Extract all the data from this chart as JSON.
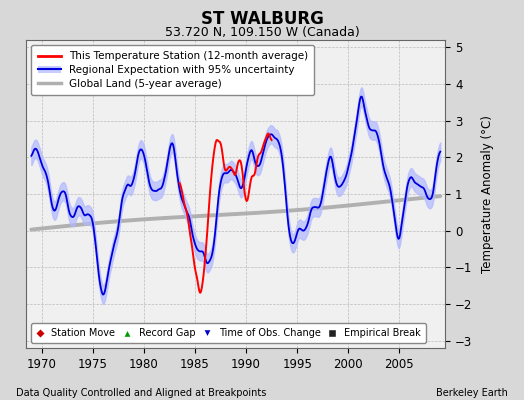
{
  "title": "ST WALBURG",
  "subtitle": "53.720 N, 109.150 W (Canada)",
  "xlabel_bottom": "Data Quality Controlled and Aligned at Breakpoints",
  "xlabel_right": "Berkeley Earth",
  "ylabel": "Temperature Anomaly (°C)",
  "xlim": [
    1968.5,
    2009.5
  ],
  "ylim": [
    -3.2,
    5.2
  ],
  "yticks": [
    -3,
    -2,
    -1,
    0,
    1,
    2,
    3,
    4,
    5
  ],
  "xticks": [
    1970,
    1975,
    1980,
    1985,
    1990,
    1995,
    2000,
    2005
  ],
  "background_color": "#d8d8d8",
  "plot_bg_color": "#f0f0f0",
  "temp_line_color": "#ff0000",
  "regional_line_color": "#0000dd",
  "regional_fill_color": "#b0b8ff",
  "global_line_color": "#b0b0b0",
  "marker_station_move_color": "#cc0000",
  "marker_record_gap_color": "#009900",
  "marker_obs_change_color": "#0000cc",
  "marker_empirical_color": "#222222",
  "seed": 42
}
